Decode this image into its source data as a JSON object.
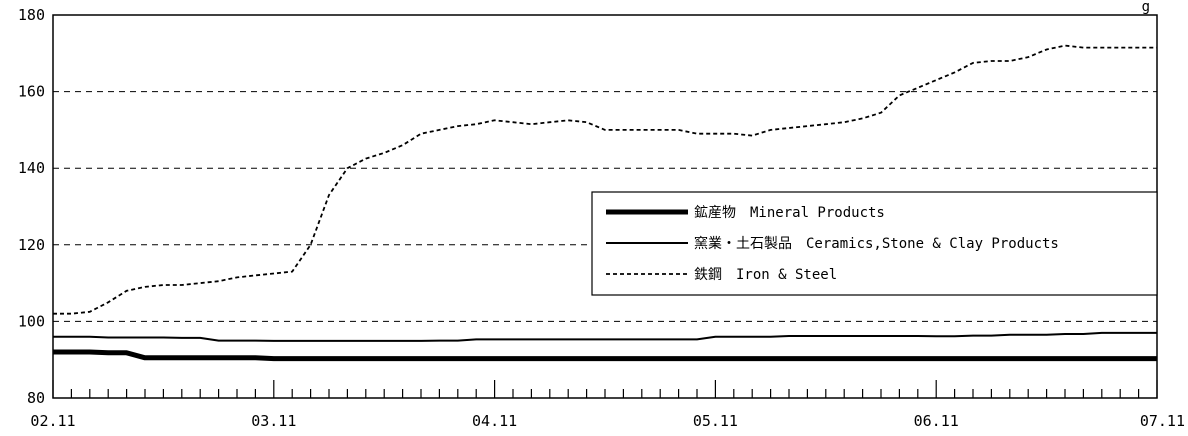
{
  "chart_data": {
    "type": "line",
    "title": "",
    "xlabel": "",
    "ylabel": "",
    "ylim": [
      80,
      180
    ],
    "yticks": [
      80,
      100,
      120,
      140,
      160,
      180
    ],
    "x_tick_labels": [
      "02.11",
      "03.11",
      "04.11",
      "05.11",
      "06.11",
      "07.11"
    ],
    "grid": "horizontal-dashed",
    "legend_position": "center-right",
    "corner_text": "g",
    "x": [
      "02.11",
      "02.12",
      "03.01",
      "03.02",
      "03.03",
      "03.04",
      "03.05",
      "03.06",
      "03.07",
      "03.08",
      "03.09",
      "03.10",
      "03.11",
      "03.12",
      "04.01",
      "04.02",
      "04.03",
      "04.04",
      "04.05",
      "04.06",
      "04.07",
      "04.08",
      "04.09",
      "04.10",
      "04.11",
      "04.12",
      "05.01",
      "05.02",
      "05.03",
      "05.04",
      "05.05",
      "05.06",
      "05.07",
      "05.08",
      "05.09",
      "05.10",
      "05.11",
      "05.12",
      "06.01",
      "06.02",
      "06.03",
      "06.04",
      "06.05",
      "06.06",
      "06.07",
      "06.08",
      "06.09",
      "06.10",
      "06.11",
      "06.12",
      "07.01",
      "07.02",
      "07.03",
      "07.04",
      "07.05",
      "07.06",
      "07.07",
      "07.08",
      "07.09",
      "07.10",
      "07.11"
    ],
    "series": [
      {
        "name": "鉱産物　Mineral Products",
        "style": "thick",
        "color": "#000000",
        "values": [
          92,
          92,
          92,
          91.8,
          91.8,
          90.5,
          90.5,
          90.5,
          90.5,
          90.5,
          90.5,
          90.5,
          90.3,
          90.3,
          90.3,
          90.3,
          90.3,
          90.3,
          90.3,
          90.3,
          90.3,
          90.3,
          90.3,
          90.3,
          90.3,
          90.3,
          90.3,
          90.3,
          90.3,
          90.3,
          90.3,
          90.3,
          90.3,
          90.3,
          90.3,
          90.3,
          90.3,
          90.3,
          90.3,
          90.3,
          90.3,
          90.3,
          90.3,
          90.3,
          90.3,
          90.3,
          90.3,
          90.3,
          90.3,
          90.3,
          90.3,
          90.3,
          90.3,
          90.3,
          90.3,
          90.3,
          90.3,
          90.3,
          90.3,
          90.3,
          90.3
        ]
      },
      {
        "name": "窯業・土石製品　Ceramics,Stone & Clay Products",
        "style": "solid",
        "color": "#000000",
        "values": [
          96,
          96,
          96,
          95.8,
          95.8,
          95.8,
          95.8,
          95.7,
          95.7,
          95,
          95,
          95,
          94.9,
          94.9,
          94.9,
          94.9,
          94.9,
          94.9,
          94.9,
          94.9,
          94.9,
          95,
          95,
          95.3,
          95.3,
          95.3,
          95.3,
          95.3,
          95.3,
          95.3,
          95.3,
          95.3,
          95.3,
          95.3,
          95.3,
          95.3,
          96,
          96,
          96,
          96,
          96.2,
          96.2,
          96.2,
          96.2,
          96.2,
          96.2,
          96.2,
          96.2,
          96.1,
          96.1,
          96.3,
          96.3,
          96.5,
          96.5,
          96.5,
          96.7,
          96.7,
          97,
          97,
          97,
          97
        ]
      },
      {
        "name": "鉄鋼　Iron & Steel",
        "style": "dotted",
        "color": "#000000",
        "values": [
          102,
          102,
          102.5,
          105,
          108,
          109,
          109.5,
          109.5,
          110,
          110.5,
          111.5,
          112,
          112.5,
          113,
          120,
          133,
          140,
          142.5,
          144,
          146,
          149,
          150,
          151,
          151.5,
          152.5,
          152,
          151.5,
          152,
          152.5,
          152,
          150,
          150,
          150,
          150,
          150,
          149,
          149,
          149,
          148.5,
          150,
          150.5,
          151,
          151.5,
          152,
          153,
          154.5,
          159,
          161,
          163,
          165,
          167.5,
          168,
          168,
          169,
          171,
          172,
          171.5,
          171.5,
          171.5,
          171.5,
          171.5
        ]
      }
    ]
  }
}
